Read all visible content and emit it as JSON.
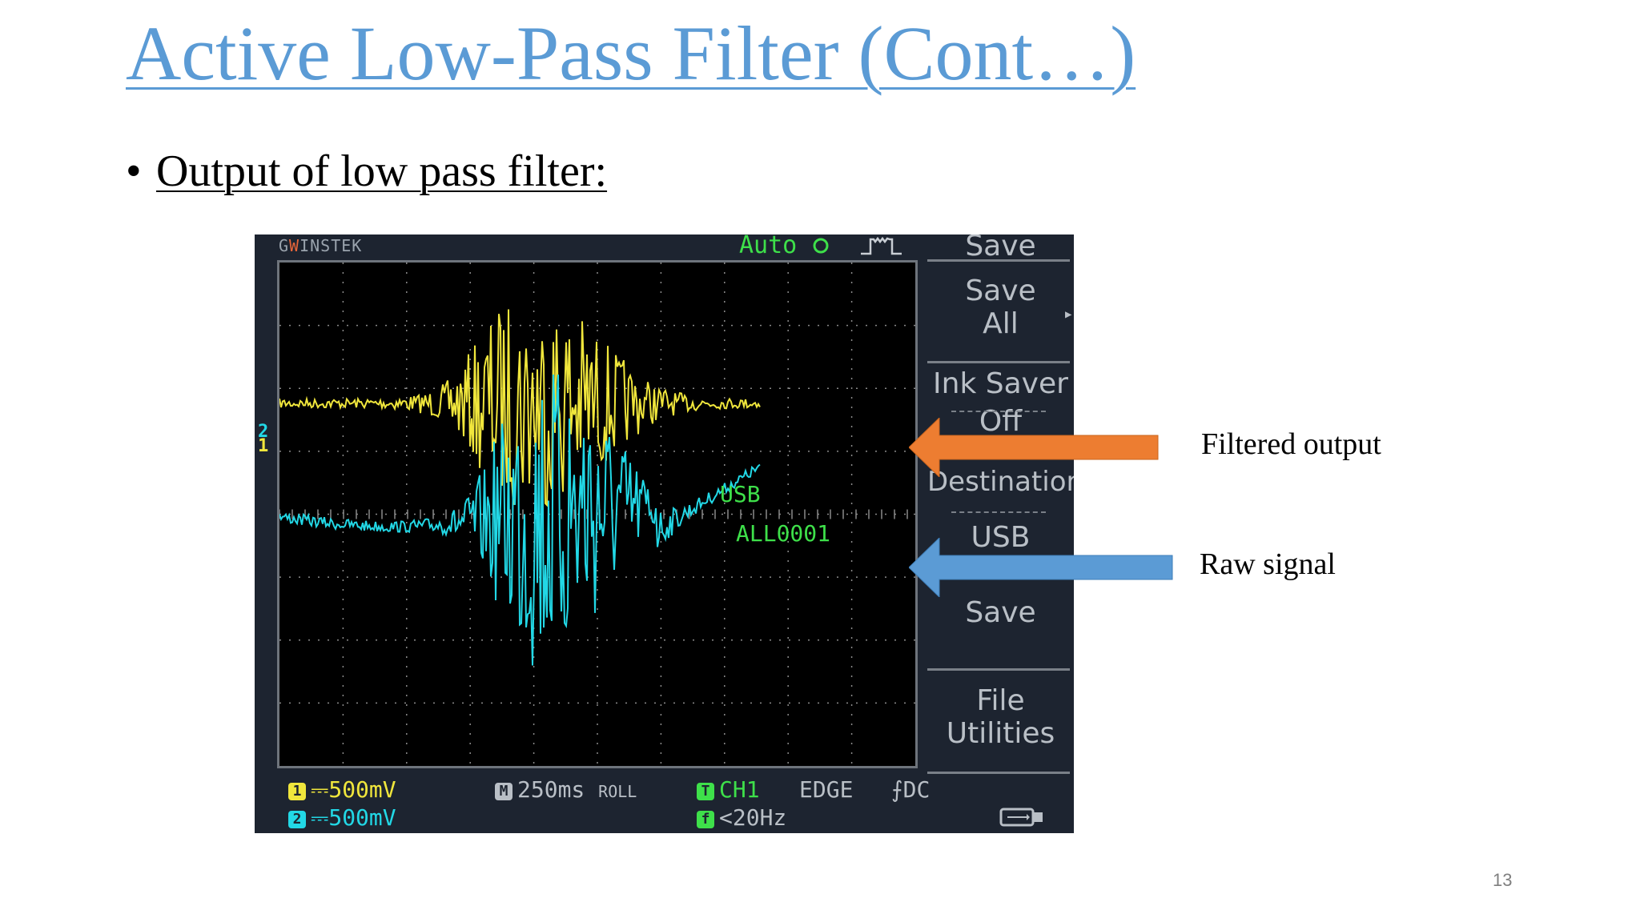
{
  "slide": {
    "title": "Active Low-Pass Filter (Cont…)",
    "bullet_symbol": "•",
    "bullet_text": "Output of low pass filter:",
    "page_number": "13"
  },
  "annotations": {
    "filtered_label": "Filtered output",
    "raw_label": "Raw signal",
    "filtered_arrow_color": "#ed7d31",
    "raw_arrow_color": "#5b9bd5"
  },
  "oscilloscope": {
    "brand_prefix": "G",
    "brand_mid": "W",
    "brand_suffix": "INSTEK",
    "trigger_mode": "Auto",
    "trigger_mode_icon": "circle-icon",
    "colors": {
      "ch1": "#f0e63c",
      "ch2": "#22d8e6",
      "accent": "#3ee04a",
      "grid": "#8a8a8a"
    },
    "ch_markers": {
      "ch1": "1",
      "ch2": "2"
    },
    "screen_overlay": {
      "line1": "USB",
      "line2": "ALL0001"
    },
    "menu": {
      "top": "Save",
      "item1_line1": "Save",
      "item1_line2": "All",
      "item2": "Ink Saver",
      "item2_value": "Off",
      "item3": "Destination",
      "item3_value": "USB",
      "item4": "Save",
      "item5_line1": "File",
      "item5_line2": "Utilities"
    },
    "status": {
      "ch1_badge": "1",
      "ch1_scale": "⎓500mV",
      "ch2_badge": "2",
      "ch2_scale": "⎓500mV",
      "timebase_badge": "M",
      "timebase": "250ms",
      "timebase_mode": "ROLL",
      "trigger_badge": "T",
      "trigger_source": "CH1",
      "trigger_type": "EDGE",
      "trigger_coupling": "⨍DC",
      "freq_badge": "f",
      "frequency": "<20Hz",
      "usb_icon": "usb-stick-icon"
    }
  }
}
